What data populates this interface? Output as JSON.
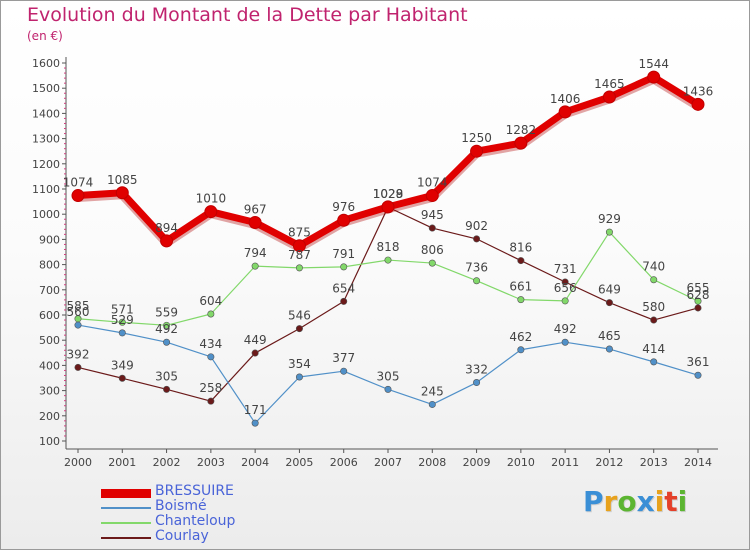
{
  "title": "Evolution du Montant de la Dette par Habitant",
  "subtitle": "(en €)",
  "logo": {
    "text": "Proxiti",
    "colors": [
      "#3a8fd6",
      "#e8a21c",
      "#5bb531",
      "#3a8fd6",
      "#e8a21c",
      "#e4402a",
      "#5bb531"
    ]
  },
  "chart_data": {
    "type": "line",
    "x": [
      "2000",
      "2001",
      "2002",
      "2003",
      "2004",
      "2005",
      "2006",
      "2007",
      "2008",
      "2009",
      "2010",
      "2011",
      "2012",
      "2013",
      "2014"
    ],
    "yticks": [
      "100",
      "200",
      "300",
      "400",
      "500",
      "600",
      "700",
      "800",
      "900",
      "1000",
      "1100",
      "1200",
      "1300",
      "1400",
      "1500",
      "1600"
    ],
    "ylim": [
      100,
      1600
    ],
    "grid": false,
    "legend_position": "bottom-left",
    "series": [
      {
        "name": "Courlay",
        "color": "#6b1a1a",
        "values": [
          392,
          349,
          305,
          258,
          449,
          546,
          654,
          1028,
          945,
          902,
          816,
          731,
          649,
          580,
          628
        ]
      },
      {
        "name": "Boismé",
        "color": "#5090c8",
        "values": [
          560,
          529,
          492,
          434,
          171,
          354,
          377,
          305,
          245,
          332,
          462,
          492,
          465,
          414,
          361
        ]
      },
      {
        "name": "Chanteloup",
        "color": "#82d86a",
        "values": [
          585,
          571,
          559,
          604,
          794,
          787,
          791,
          818,
          806,
          736,
          661,
          656,
          929,
          740,
          655
        ]
      },
      {
        "name": "BRESSUIRE",
        "color": "#e00000",
        "values": [
          1074,
          1085,
          894,
          1010,
          967,
          875,
          976,
          1029,
          1074,
          1250,
          1282,
          1406,
          1465,
          1544,
          1436
        ]
      }
    ],
    "legend_order": [
      "BRESSUIRE",
      "Boismé",
      "Chanteloup",
      "Courlay"
    ]
  }
}
